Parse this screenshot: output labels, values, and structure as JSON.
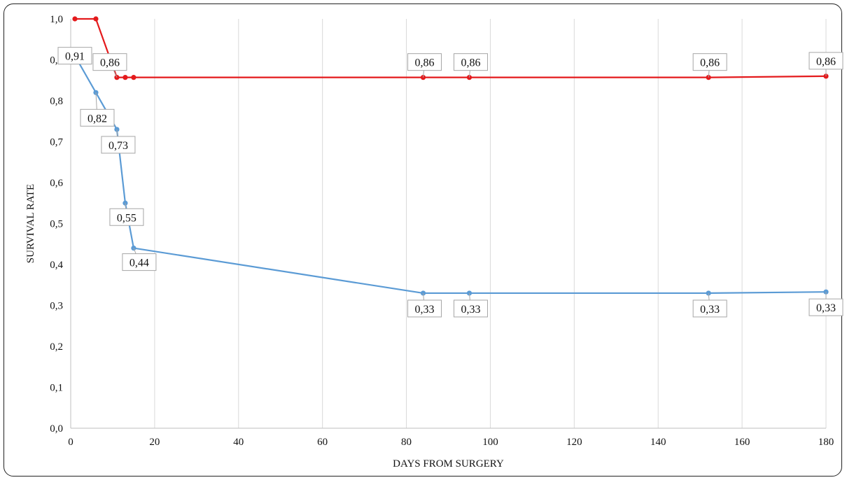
{
  "chart_data": {
    "type": "line",
    "xlabel": "DAYS FROM SURGERY",
    "ylabel": "SURVIVAL RATE",
    "xlim": [
      0,
      180
    ],
    "ylim": [
      0,
      1
    ],
    "x_ticks": [
      "0",
      "20",
      "40",
      "60",
      "80",
      "100",
      "120",
      "140",
      "160",
      "180"
    ],
    "y_ticks": [
      "0,0",
      "0,1",
      "0,2",
      "0,3",
      "0,4",
      "0,5",
      "0,6",
      "0,7",
      "0,8",
      "0,9",
      "1,0"
    ],
    "grid": "vertical",
    "legend": "none",
    "series": [
      {
        "color": "#E41A1C",
        "points": [
          {
            "x": 1,
            "y": 1.0
          },
          {
            "x": 6,
            "y": 1.0
          },
          {
            "x": 11,
            "y": 0.857
          },
          {
            "x": 13,
            "y": 0.857
          },
          {
            "x": 15,
            "y": 0.857
          },
          {
            "x": 84,
            "y": 0.857
          },
          {
            "x": 95,
            "y": 0.857
          },
          {
            "x": 152,
            "y": 0.857
          },
          {
            "x": 180,
            "y": 0.86
          }
        ],
        "labels": [
          {
            "x": 11,
            "text": "0,86"
          },
          {
            "x": 84,
            "text": "0,86"
          },
          {
            "x": 95,
            "text": "0,86"
          },
          {
            "x": 152,
            "text": "0,86"
          },
          {
            "x": 180,
            "text": "0,86"
          }
        ]
      },
      {
        "color": "#5B9BD5",
        "points": [
          {
            "x": 1,
            "y": 0.91
          },
          {
            "x": 6,
            "y": 0.82
          },
          {
            "x": 11,
            "y": 0.73
          },
          {
            "x": 13,
            "y": 0.55
          },
          {
            "x": 15,
            "y": 0.44
          },
          {
            "x": 84,
            "y": 0.33
          },
          {
            "x": 95,
            "y": 0.33
          },
          {
            "x": 152,
            "y": 0.33
          },
          {
            "x": 180,
            "y": 0.333
          }
        ],
        "labels": [
          {
            "x": 1,
            "text": "0,91"
          },
          {
            "x": 6,
            "text": "0,82"
          },
          {
            "x": 11,
            "text": "0,73"
          },
          {
            "x": 13,
            "text": "0,55"
          },
          {
            "x": 15,
            "text": "0,44"
          },
          {
            "x": 84,
            "text": "0,33"
          },
          {
            "x": 95,
            "text": "0,33"
          },
          {
            "x": 152,
            "text": "0,33"
          },
          {
            "x": 180,
            "text": "0,33"
          }
        ]
      }
    ]
  }
}
